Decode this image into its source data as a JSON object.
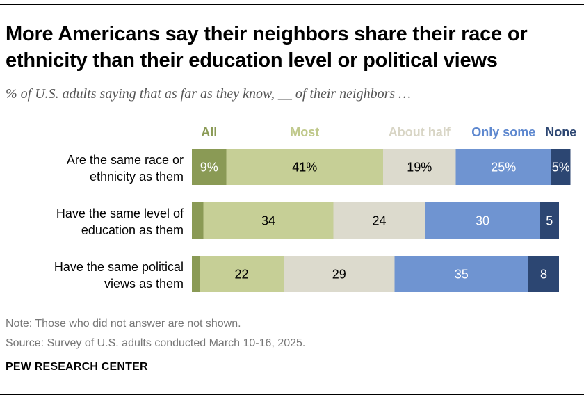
{
  "header": {
    "title": "More Americans say their neighbors share their race or ethnicity than their education level or political views",
    "subtitle": "% of U.S. adults saying that as far as they know, __ of their neighbors …"
  },
  "footer": {
    "note": "Note: Those who did not answer are not shown.",
    "source": "Source: Survey of U.S. adults conducted March 10-16, 2025.",
    "brand": "PEW RESEARCH CENTER"
  },
  "chart_data": {
    "type": "bar",
    "orientation": "horizontal",
    "stacked": true,
    "unit": "%",
    "xlim": [
      0,
      100
    ],
    "legend_position": "top",
    "categories": [
      [
        "Are the same race or",
        "ethnicity as them"
      ],
      [
        "Have the same level of",
        "education as them"
      ],
      [
        "Have the same political",
        "views as them"
      ]
    ],
    "series": [
      {
        "name": "All",
        "color": "#8a9a55",
        "text_color": "#ffffff",
        "legend_color": "#8a9a55",
        "values": [
          9,
          3,
          2
        ],
        "labels": [
          "9%",
          "",
          ""
        ]
      },
      {
        "name": "Most",
        "color": "#c6cf96",
        "text_color": "#000000",
        "legend_color": "#c0c98c",
        "values": [
          41,
          34,
          22
        ],
        "labels": [
          "41%",
          "34",
          "22"
        ]
      },
      {
        "name": "About half",
        "color": "#dcdacd",
        "text_color": "#000000",
        "legend_color": "#d8d5c5",
        "values": [
          19,
          24,
          29
        ],
        "labels": [
          "19%",
          "24",
          "29"
        ]
      },
      {
        "name": "Only some",
        "color": "#6f94d1",
        "text_color": "#ffffff",
        "legend_color": "#5e88cf",
        "values": [
          25,
          30,
          35
        ],
        "labels": [
          "25%",
          "30",
          "35"
        ]
      },
      {
        "name": "None",
        "color": "#2c4672",
        "text_color": "#ffffff",
        "legend_color": "#2c4672",
        "values": [
          5,
          5,
          8
        ],
        "labels": [
          "5%",
          "5",
          "8"
        ]
      }
    ]
  }
}
